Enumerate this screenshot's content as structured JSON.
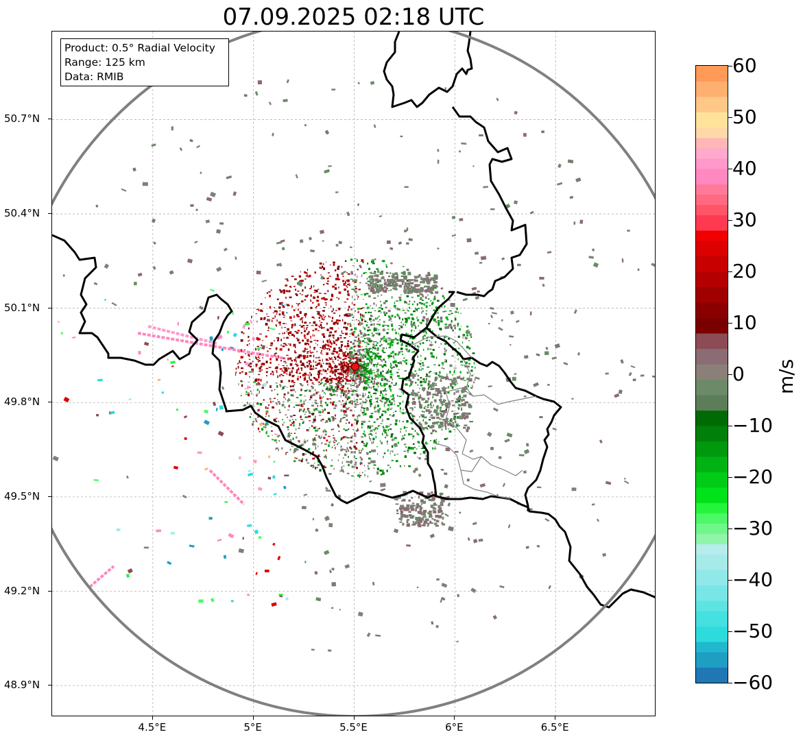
{
  "title": "07.09.2025 02:18 UTC",
  "info_box": {
    "product": "Product: 0.5° Radial Velocity",
    "range": "Range: 125 km",
    "data": "Data: RMIB"
  },
  "map": {
    "lon_range": [
      4.0,
      7.0
    ],
    "lat_range": [
      48.8,
      50.98
    ],
    "radar_site": {
      "lon": 5.505,
      "lat": 49.914
    },
    "lat_ticks": [
      {
        "value": 50.7,
        "label": "50.7°N"
      },
      {
        "value": 50.4,
        "label": "50.4°N"
      },
      {
        "value": 50.1,
        "label": "50.1°N"
      },
      {
        "value": 49.8,
        "label": "49.8°N"
      },
      {
        "value": 49.5,
        "label": "49.5°N"
      },
      {
        "value": 49.2,
        "label": "49.2°N"
      },
      {
        "value": 48.9,
        "label": "48.9°N"
      }
    ],
    "lon_ticks": [
      {
        "value": 4.5,
        "label": "4.5°E"
      },
      {
        "value": 5.0,
        "label": "5°E"
      },
      {
        "value": 5.5,
        "label": "5.5°E"
      },
      {
        "value": 6.0,
        "label": "6°E"
      },
      {
        "value": 6.5,
        "label": "6.5°E"
      }
    ],
    "colors": {
      "range_ring": "#808080",
      "border": "#000000",
      "region_border": "#808080",
      "grid": "#b0b0b0",
      "site_fill": "#ee1111"
    }
  },
  "colorbar": {
    "label": "m/s",
    "min": -60,
    "max": 60,
    "ticks": [
      {
        "value": 60,
        "label": "60"
      },
      {
        "value": 50,
        "label": "50"
      },
      {
        "value": 40,
        "label": "40"
      },
      {
        "value": 30,
        "label": "30"
      },
      {
        "value": 20,
        "label": "20"
      },
      {
        "value": 10,
        "label": "10"
      },
      {
        "value": 0,
        "label": "0"
      },
      {
        "value": -10,
        "label": "−10"
      },
      {
        "value": -20,
        "label": "−20"
      },
      {
        "value": -30,
        "label": "−30"
      },
      {
        "value": -40,
        "label": "−40"
      },
      {
        "value": -50,
        "label": "−50"
      },
      {
        "value": -60,
        "label": "−60"
      }
    ],
    "bands": [
      {
        "from": -60,
        "to": -57,
        "color": "#1f77b4"
      },
      {
        "from": -57,
        "to": -54,
        "color": "#1f9ec4"
      },
      {
        "from": -54,
        "to": -52,
        "color": "#20b8cf"
      },
      {
        "from": -52,
        "to": -49,
        "color": "#2ddbdd"
      },
      {
        "from": -49,
        "to": -46,
        "color": "#45e0e0"
      },
      {
        "from": -46,
        "to": -44,
        "color": "#5ee3e3"
      },
      {
        "from": -44,
        "to": -41,
        "color": "#78e6e6"
      },
      {
        "from": -41,
        "to": -38,
        "color": "#90e8e8"
      },
      {
        "from": -38,
        "to": -35,
        "color": "#a6eaea"
      },
      {
        "from": -35,
        "to": -33,
        "color": "#b5ecec"
      },
      {
        "from": -33,
        "to": -31,
        "color": "#8ff5a8"
      },
      {
        "from": -31,
        "to": -29,
        "color": "#6ff78a"
      },
      {
        "from": -29,
        "to": -27,
        "color": "#4cf866"
      },
      {
        "from": -27,
        "to": -25,
        "color": "#25f53a"
      },
      {
        "from": -25,
        "to": -22,
        "color": "#00e31a"
      },
      {
        "from": -22,
        "to": -19,
        "color": "#00cc16"
      },
      {
        "from": -19,
        "to": -16,
        "color": "#00b312"
      },
      {
        "from": -16,
        "to": -13,
        "color": "#00990e"
      },
      {
        "from": -13,
        "to": -10,
        "color": "#00800a"
      },
      {
        "from": -10,
        "to": -7,
        "color": "#006b05"
      },
      {
        "from": -7,
        "to": -4,
        "color": "#5b7e58"
      },
      {
        "from": -4,
        "to": -1,
        "color": "#6c8a68"
      },
      {
        "from": -1,
        "to": 2,
        "color": "#8a8078"
      },
      {
        "from": 2,
        "to": 5,
        "color": "#8b6b74"
      },
      {
        "from": 5,
        "to": 8,
        "color": "#8c4c56"
      },
      {
        "from": 8,
        "to": 11,
        "color": "#7a0000"
      },
      {
        "from": 11,
        "to": 14,
        "color": "#8a0000"
      },
      {
        "from": 14,
        "to": 17,
        "color": "#a00000"
      },
      {
        "from": 17,
        "to": 20,
        "color": "#b40000"
      },
      {
        "from": 20,
        "to": 23,
        "color": "#c80000"
      },
      {
        "from": 23,
        "to": 26,
        "color": "#dc0000"
      },
      {
        "from": 26,
        "to": 28,
        "color": "#f00000"
      },
      {
        "from": 28,
        "to": 31,
        "color": "#ff3a50"
      },
      {
        "from": 31,
        "to": 33,
        "color": "#ff5566"
      },
      {
        "from": 33,
        "to": 35,
        "color": "#ff6a80"
      },
      {
        "from": 35,
        "to": 37,
        "color": "#ff7a99"
      },
      {
        "from": 37,
        "to": 40,
        "color": "#ff88c0"
      },
      {
        "from": 40,
        "to": 42,
        "color": "#ff99cc"
      },
      {
        "from": 42,
        "to": 44,
        "color": "#ffaacc"
      },
      {
        "from": 44,
        "to": 46,
        "color": "#ffb6b6"
      },
      {
        "from": 46,
        "to": 48,
        "color": "#ffd8a8"
      },
      {
        "from": 48,
        "to": 51,
        "color": "#ffe39a"
      },
      {
        "from": 51,
        "to": 54,
        "color": "#ffc888"
      },
      {
        "from": 54,
        "to": 57,
        "color": "#ffb070"
      },
      {
        "from": 57,
        "to": 60,
        "color": "#ff9a58"
      }
    ]
  }
}
